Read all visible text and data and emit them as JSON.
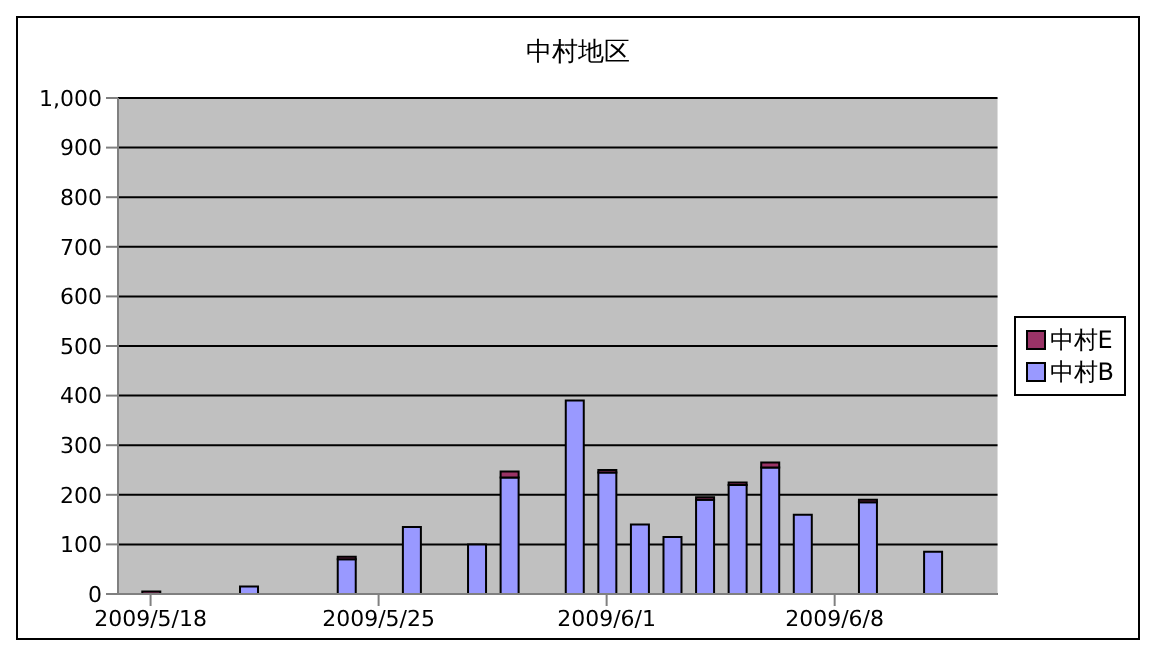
{
  "chart_data": {
    "type": "bar",
    "title": "中村地区",
    "stacked": true,
    "x": [
      "2009-05-18",
      "2009-05-21",
      "2009-05-24",
      "2009-05-26",
      "2009-05-28",
      "2009-05-29",
      "2009-05-31",
      "2009-06-01",
      "2009-06-02",
      "2009-06-03",
      "2009-06-04",
      "2009-06-05",
      "2009-06-06",
      "2009-06-07",
      "2009-06-09",
      "2009-06-11"
    ],
    "series": [
      {
        "name": "中村B",
        "color": "#9999ff",
        "values": [
          0,
          15,
          70,
          135,
          100,
          235,
          390,
          245,
          140,
          115,
          190,
          220,
          255,
          160,
          185,
          85
        ]
      },
      {
        "name": "中村E",
        "color": "#993366",
        "values": [
          5,
          0,
          5,
          0,
          0,
          12,
          0,
          5,
          0,
          0,
          5,
          5,
          10,
          0,
          5,
          0
        ]
      }
    ],
    "xlim": [
      "2009-05-17",
      "2009-06-13"
    ],
    "xticks": [
      {
        "value": "2009-05-18",
        "label": "2009/5/18"
      },
      {
        "value": "2009-05-25",
        "label": "2009/5/25"
      },
      {
        "value": "2009-06-01",
        "label": "2009/6/1"
      },
      {
        "value": "2009-06-08",
        "label": "2009/6/8"
      }
    ],
    "ylim": [
      0,
      1000
    ],
    "yticks": [
      0,
      {
        "value": 100,
        "label": "100"
      },
      200,
      300,
      400,
      500,
      600,
      700,
      800,
      900,
      {
        "value": 1000,
        "label": "1,000"
      }
    ],
    "grid": "y",
    "legend": "right"
  }
}
